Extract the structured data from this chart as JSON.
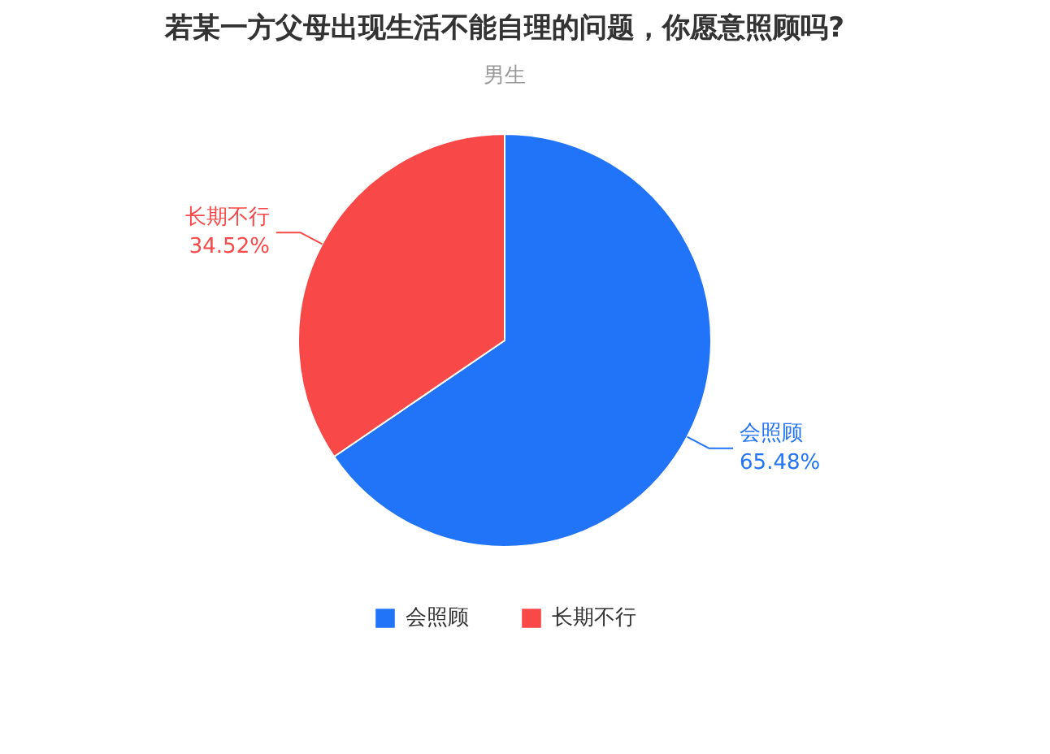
{
  "chart_data": {
    "type": "pie",
    "title": "若某一方父母出现生活不能自理的问题，你愿意照顾吗?",
    "subtitle": "男生",
    "categories": [
      "会照顾",
      "长期不行"
    ],
    "values": [
      65.48,
      34.52
    ],
    "colors": [
      "#2173f7",
      "#f94848"
    ],
    "value_labels": [
      "65.48%",
      "34.52%"
    ],
    "legend": "bottom"
  }
}
